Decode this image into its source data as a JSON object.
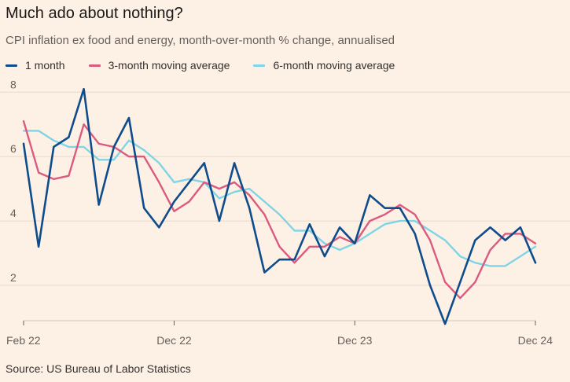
{
  "title": "Much ado about nothing?",
  "subtitle": "CPI inflation ex food and energy, month-over-month % change, annualised",
  "source": "Source: US Bureau of Labor Statistics",
  "chart_data": {
    "type": "line",
    "title": "Much ado about nothing?",
    "subtitle": "CPI inflation ex food and energy, month-over-month % change, annualised",
    "xlabel": "",
    "ylabel": "",
    "x_start": "Feb 22",
    "x_end": "Dec 24",
    "x_ticks": [
      "Feb 22",
      "Dec 22",
      "Dec 23",
      "Dec 24"
    ],
    "x_tick_index": [
      0,
      10,
      22,
      34
    ],
    "y_ticks": [
      2,
      4,
      6,
      8
    ],
    "ylim": [
      0.9,
      8.3
    ],
    "grid": "horizontal",
    "legend": "top-left",
    "series": [
      {
        "name": "1 month",
        "color": "#0f4c8c",
        "values": [
          6.4,
          3.2,
          6.3,
          6.6,
          8.1,
          4.5,
          6.3,
          7.2,
          4.4,
          3.8,
          4.6,
          5.2,
          5.8,
          4.0,
          5.8,
          4.4,
          2.4,
          2.8,
          2.8,
          3.9,
          2.9,
          3.8,
          3.3,
          4.8,
          4.4,
          4.4,
          3.6,
          2.0,
          0.8,
          2.1,
          3.4,
          3.8,
          3.4,
          3.8,
          2.7
        ]
      },
      {
        "name": "3-month moving average",
        "color": "#db5a7f",
        "values": [
          7.1,
          5.5,
          5.3,
          5.4,
          7.0,
          6.4,
          6.3,
          6.0,
          6.0,
          5.2,
          4.3,
          4.6,
          5.2,
          5.0,
          5.2,
          4.8,
          4.2,
          3.2,
          2.7,
          3.2,
          3.2,
          3.5,
          3.3,
          4.0,
          4.2,
          4.5,
          4.2,
          3.4,
          2.1,
          1.6,
          2.1,
          3.1,
          3.6,
          3.6,
          3.3
        ]
      },
      {
        "name": "6-month moving average",
        "color": "#7fd4e6",
        "values": [
          6.8,
          6.8,
          6.5,
          6.3,
          6.3,
          5.9,
          5.9,
          6.5,
          6.2,
          5.8,
          5.2,
          5.3,
          5.2,
          4.7,
          4.9,
          5.0,
          4.6,
          4.2,
          3.7,
          3.7,
          3.3,
          3.1,
          3.3,
          3.6,
          3.9,
          4.0,
          4.0,
          3.7,
          3.4,
          2.9,
          2.7,
          2.6,
          2.6,
          2.9,
          3.2
        ]
      }
    ]
  }
}
